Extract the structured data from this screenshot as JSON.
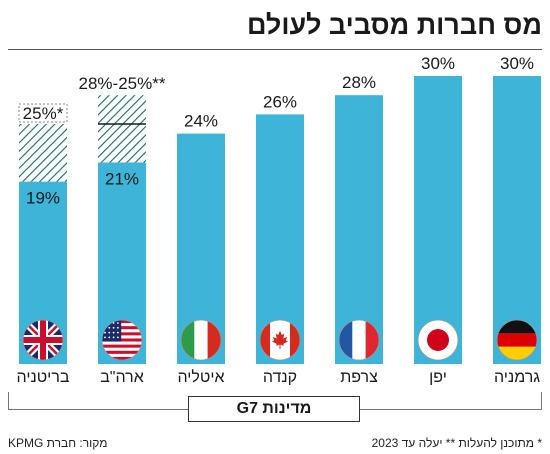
{
  "title": "מס חברות מסביב לעולם",
  "group_label": "מדינות G7",
  "footnote": "* מתוכנן להעלות ** יעלה עד 2023",
  "source": "מקור: חברת KPMG",
  "colors": {
    "bar": "#3db4d8",
    "hatch": "#1f6b63",
    "text": "#1a1a1a"
  },
  "chart_data": {
    "type": "bar",
    "ylim": [
      0,
      30
    ],
    "categories": [
      "בריטניה",
      "ארה\"ב",
      "איטליה",
      "קנדה",
      "צרפת",
      "יפן",
      "גרמניה"
    ],
    "values": [
      19,
      21,
      24,
      26,
      28,
      30,
      30
    ],
    "value_labels": [
      "19%",
      "21%",
      "24%",
      "26%",
      "28%",
      "30%",
      "30%"
    ],
    "planned": [
      {
        "category": "בריטניה",
        "value": 25,
        "label": "25%*"
      },
      {
        "category": "ארה\"ב",
        "value": 28,
        "value_low": 25,
        "label": "28%-25%**"
      }
    ],
    "flags": [
      "uk-flag-icon",
      "us-flag-icon",
      "italy-flag-icon",
      "canada-flag-icon",
      "france-flag-icon",
      "japan-flag-icon",
      "germany-flag-icon"
    ]
  }
}
